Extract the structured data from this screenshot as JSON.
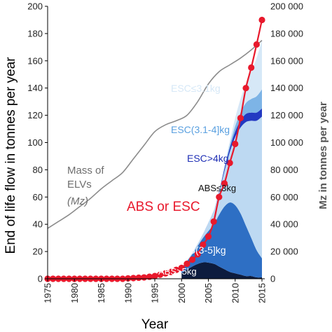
{
  "chart_data": {
    "type": "area",
    "xlabel": "Year",
    "ylabel": "End of life flow in tonnes per year",
    "y2label": "Mz in tonnes per year",
    "xlim": [
      1975,
      2015
    ],
    "ylim": [
      0,
      200
    ],
    "y2lim": [
      0,
      200000
    ],
    "xticks": [
      "1975",
      "1980",
      "1985",
      "1990",
      "1995",
      "2000",
      "2005",
      "2010",
      "2015"
    ],
    "yticks": [
      "0",
      "20",
      "40",
      "60",
      "80",
      "100",
      "120",
      "140",
      "160",
      "180",
      "200"
    ],
    "y2ticks": [
      "0",
      "20 000",
      "40 000",
      "60 000",
      "80 000",
      "100 000",
      "120 000",
      "140 000",
      "160 000",
      "180 000",
      "200 000"
    ],
    "grid": false,
    "stack_x": [
      2000,
      2002,
      2004,
      2006,
      2007,
      2008,
      2009,
      2010,
      2011,
      2012,
      2013,
      2014,
      2015
    ],
    "areas": [
      {
        "name": "ABS>5kg",
        "color": "#0d1c3e",
        "values": [
          4,
          9,
          12,
          11,
          9,
          7,
          5,
          4,
          3,
          2,
          2,
          1,
          1
        ]
      },
      {
        "name": "ABS(3-5]kg",
        "color": "#2e6fc4",
        "values": [
          4,
          9,
          18,
          29,
          38,
          46,
          51,
          50,
          45,
          37,
          28,
          20,
          14
        ]
      },
      {
        "name": "ABS≤3kg",
        "color": "#bdd9f2",
        "values": [
          0,
          1,
          3,
          10,
          16,
          26,
          37,
          50,
          63,
          76,
          86,
          95,
          104
        ]
      },
      {
        "name": "ESC>4kg",
        "color": "#2339c2",
        "values": [
          0,
          0,
          0,
          0,
          1,
          2,
          3,
          4,
          5,
          6,
          6,
          6,
          6
        ]
      },
      {
        "name": "ESC(3.1-4]kg",
        "color": "#7db4e6",
        "values": [
          0,
          0,
          0,
          0,
          0,
          1,
          2,
          4,
          6,
          8,
          10,
          12,
          14
        ]
      },
      {
        "name": "ESC≤3.1kg",
        "color": "#d6e8f7",
        "values": [
          0,
          0,
          0,
          0,
          0,
          1,
          3,
          6,
          10,
          14,
          20,
          28,
          36
        ]
      }
    ],
    "series": [
      {
        "name": "ABS or ESC",
        "color": "#e8192c",
        "x": [
          1975,
          1976,
          1977,
          1978,
          1979,
          1980,
          1981,
          1982,
          1983,
          1984,
          1985,
          1986,
          1987,
          1988,
          1989,
          1990,
          1991,
          1992,
          1993,
          1994,
          1995,
          1996,
          1997,
          1998,
          1999,
          2000,
          2001,
          2002,
          2003,
          2004,
          2005,
          2006,
          2007,
          2008,
          2009,
          2010,
          2011,
          2012,
          2013,
          2014,
          2015
        ],
        "y": [
          0,
          0,
          0,
          0,
          0,
          0,
          0,
          0,
          0,
          0,
          0,
          0,
          0,
          0,
          0,
          0.3,
          0.5,
          0.8,
          1,
          1.5,
          2,
          3,
          4,
          5,
          6.5,
          8,
          11,
          14,
          18,
          25,
          31,
          42,
          60,
          70,
          85,
          99,
          118,
          140,
          155,
          172,
          190
        ]
      },
      {
        "name": "Mass of ELVs (Mz)",
        "axis": "right",
        "color": "#8c8c8c",
        "x": [
          1975,
          1977,
          1979,
          1981,
          1983,
          1985,
          1987,
          1989,
          1991,
          1993,
          1995,
          1997,
          1999,
          2001,
          2003,
          2005,
          2007,
          2009,
          2011,
          2013,
          2015
        ],
        "y": [
          37000,
          42000,
          47000,
          53000,
          59000,
          66000,
          72000,
          78000,
          88000,
          98000,
          108000,
          113000,
          116000,
          120000,
          130000,
          143000,
          152000,
          157000,
          162000,
          168000,
          175000
        ]
      }
    ],
    "annotations": [
      {
        "text_lines": [
          "Mass of",
          "ELVs",
          "(Mz)"
        ],
        "color": "#6e6e6e"
      },
      {
        "text": "ESC≤3.1kg",
        "color": "#d6e8f7"
      },
      {
        "text": "ESC(3.1-4]kg",
        "color": "#5aa0e0"
      },
      {
        "text": "ESC>4kg",
        "color": "#1f2fb5"
      },
      {
        "text": "ABS≤3kg",
        "color": "#111111"
      },
      {
        "text": "ABS or ESC",
        "color": "#e8192c"
      },
      {
        "text": "ABS(3-5]kg",
        "color": "#ffffff"
      },
      {
        "text": "ABS>5kg",
        "color": "#ffffff"
      }
    ]
  }
}
